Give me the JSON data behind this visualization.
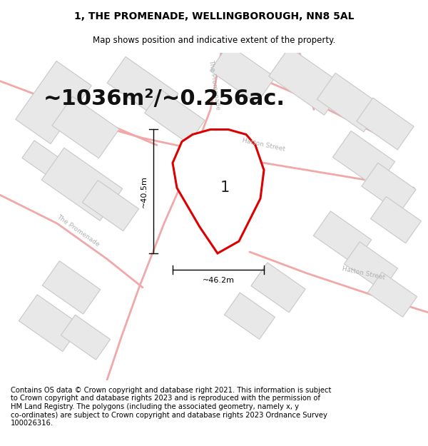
{
  "title": "1, THE PROMENADE, WELLINGBOROUGH, NN8 5AL",
  "subtitle": "Map shows position and indicative extent of the property.",
  "area_text": "~1036m²/~0.256ac.",
  "dim_height": "~40.5m",
  "dim_width": "~46.2m",
  "plot_label": "1",
  "footer": "Contains OS data © Crown copyright and database right 2021. This information is subject\nto Crown copyright and database rights 2023 and is reproduced with the permission of\nHM Land Registry. The polygons (including the associated geometry, namely x, y\nco-ordinates) are subject to Crown copyright and database rights 2023 Ordnance Survey\n100026316.",
  "bg_color": "#ffffff",
  "map_bg": "#ffffff",
  "building_fill": "#e8e8e8",
  "building_edge": "#c8c8c8",
  "road_color": "#f0a8a8",
  "property_color": "#dd0000",
  "title_fontsize": 10,
  "subtitle_fontsize": 8.5,
  "area_fontsize": 22,
  "label_fontsize": 15,
  "footer_fontsize": 7.2
}
